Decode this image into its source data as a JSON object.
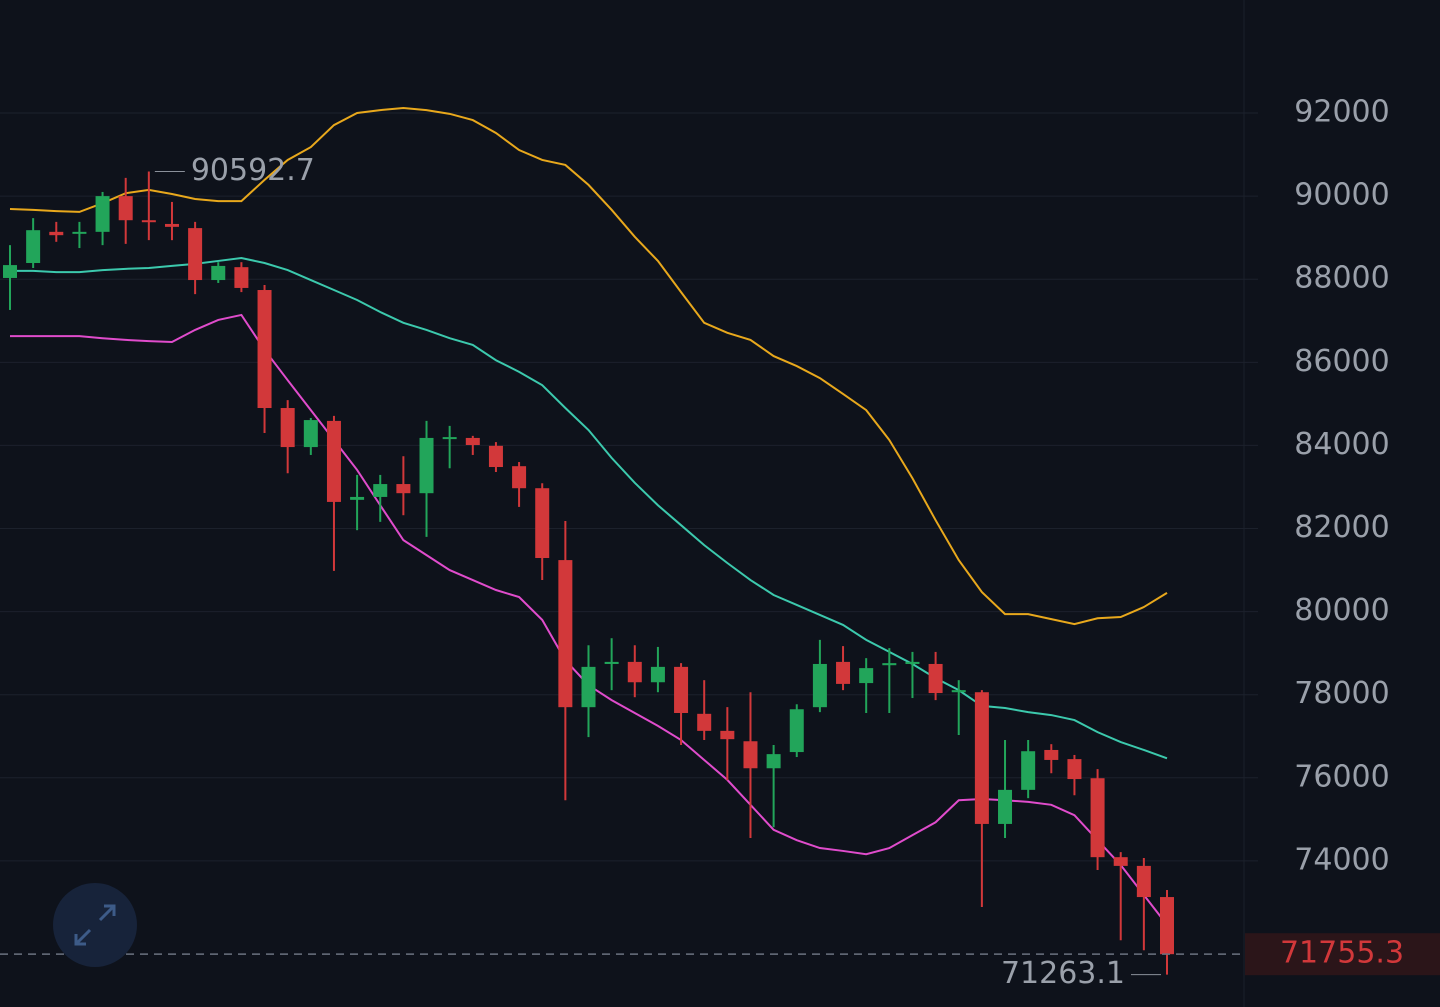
{
  "chart_data": {
    "type": "candlestick",
    "ylim": [
      70484,
      94720
    ],
    "yticks": [
      74000,
      76000,
      78000,
      80000,
      82000,
      84000,
      86000,
      88000,
      90000,
      92000
    ],
    "grid": true,
    "up_color": "#22a55a",
    "down_color": "#d2383a",
    "open": [
      88030,
      88390,
      89140,
      89110,
      89140,
      90000,
      89420,
      89330,
      89230,
      87980,
      88290,
      87740,
      84900,
      83960,
      84590,
      82690,
      82760,
      83070,
      82850,
      84180,
      84180,
      83990,
      83500,
      82970,
      81240,
      77700,
      78740,
      78790,
      78300,
      78670,
      77540,
      77130,
      76880,
      76230,
      76620,
      77700,
      78790,
      78280,
      78710,
      78740,
      78740,
      78060,
      78060,
      74890,
      75710,
      76670,
      76450,
      75990,
      74090,
      73880,
      73130
    ],
    "high": [
      88820,
      89470,
      89380,
      89380,
      90100,
      90440,
      90592.7,
      89860,
      89380,
      88410,
      88410,
      87860,
      85090,
      84660,
      84710,
      83290,
      83290,
      83740,
      84590,
      84470,
      84230,
      84080,
      83600,
      83090,
      82180,
      79190,
      79360,
      79190,
      79150,
      78760,
      78350,
      77700,
      78060,
      76790,
      77770,
      79320,
      79170,
      78880,
      79120,
      79030,
      79030,
      78350,
      78110,
      76910,
      76910,
      76810,
      76550,
      76210,
      74210,
      74070,
      73300
    ],
    "low": [
      87260,
      88270,
      88900,
      88750,
      88820,
      88850,
      88940,
      88940,
      87640,
      87910,
      87690,
      84300,
      83330,
      83770,
      80980,
      81960,
      82160,
      82320,
      81800,
      83450,
      83770,
      83360,
      82520,
      80760,
      75460,
      76980,
      78110,
      77940,
      78060,
      76790,
      76910,
      75940,
      74550,
      74810,
      76500,
      77580,
      78110,
      77560,
      77560,
      77920,
      77870,
      77030,
      72890,
      74550,
      75510,
      76110,
      75580,
      73780,
      72090,
      71850,
      71263.1
    ],
    "close": [
      88340,
      89180,
      89060,
      89140,
      90000,
      89420,
      89380,
      89260,
      87980,
      88320,
      87790,
      84900,
      83960,
      84610,
      82640,
      82760,
      83070,
      82850,
      84180,
      84200,
      84010,
      83480,
      82970,
      81290,
      77700,
      78670,
      78790,
      78300,
      78670,
      77560,
      77130,
      76930,
      76230,
      76570,
      77650,
      78740,
      78260,
      78640,
      78760,
      78790,
      78040,
      78110,
      74890,
      75710,
      76640,
      76430,
      75970,
      74090,
      73880,
      73130,
      71755.3
    ],
    "series": [
      {
        "color": "#e8a81c",
        "values": [
          89690,
          89670,
          89640,
          89620,
          89830,
          90070,
          90150,
          90050,
          89930,
          89880,
          89880,
          90390,
          90870,
          91180,
          91710,
          92000,
          92070,
          92120,
          92070,
          91980,
          91830,
          91520,
          91110,
          90870,
          90750,
          90270,
          89670,
          89020,
          88440,
          87690,
          86950,
          86710,
          86540,
          86150,
          85910,
          85620,
          85240,
          84850,
          84130,
          83210,
          82200,
          81240,
          80470,
          79940,
          79940,
          79820,
          79700,
          79840,
          79870,
          80110,
          80450
        ]
      },
      {
        "color": "#3cc9ad",
        "values": [
          88200,
          88200,
          88170,
          88170,
          88220,
          88250,
          88270,
          88320,
          88370,
          88440,
          88510,
          88390,
          88220,
          87980,
          87740,
          87500,
          87210,
          86950,
          86780,
          86580,
          86420,
          86050,
          85770,
          85450,
          84900,
          84370,
          83700,
          83100,
          82560,
          82080,
          81600,
          81170,
          80760,
          80400,
          80160,
          79920,
          79680,
          79320,
          79030,
          78740,
          78400,
          78110,
          77730,
          77680,
          77580,
          77510,
          77390,
          77100,
          76860,
          76670,
          76470
        ]
      },
      {
        "color": "#e04ccc",
        "values": [
          86630,
          86630,
          86630,
          86630,
          86580,
          86540,
          86510,
          86490,
          86780,
          87020,
          87140,
          86300,
          85570,
          84850,
          84130,
          83410,
          82560,
          81720,
          81360,
          81000,
          80760,
          80520,
          80350,
          79800,
          78830,
          78230,
          77870,
          77560,
          77250,
          76910,
          76430,
          75950,
          75350,
          74750,
          74500,
          74310,
          74240,
          74160,
          74310,
          74620,
          74930,
          75460,
          75490,
          75460,
          75420,
          75350,
          75100,
          74500,
          73900,
          73180,
          72460
        ]
      }
    ],
    "high_marker": 90592.7,
    "low_marker": 71263.1,
    "last_price": 71755.3
  }
}
